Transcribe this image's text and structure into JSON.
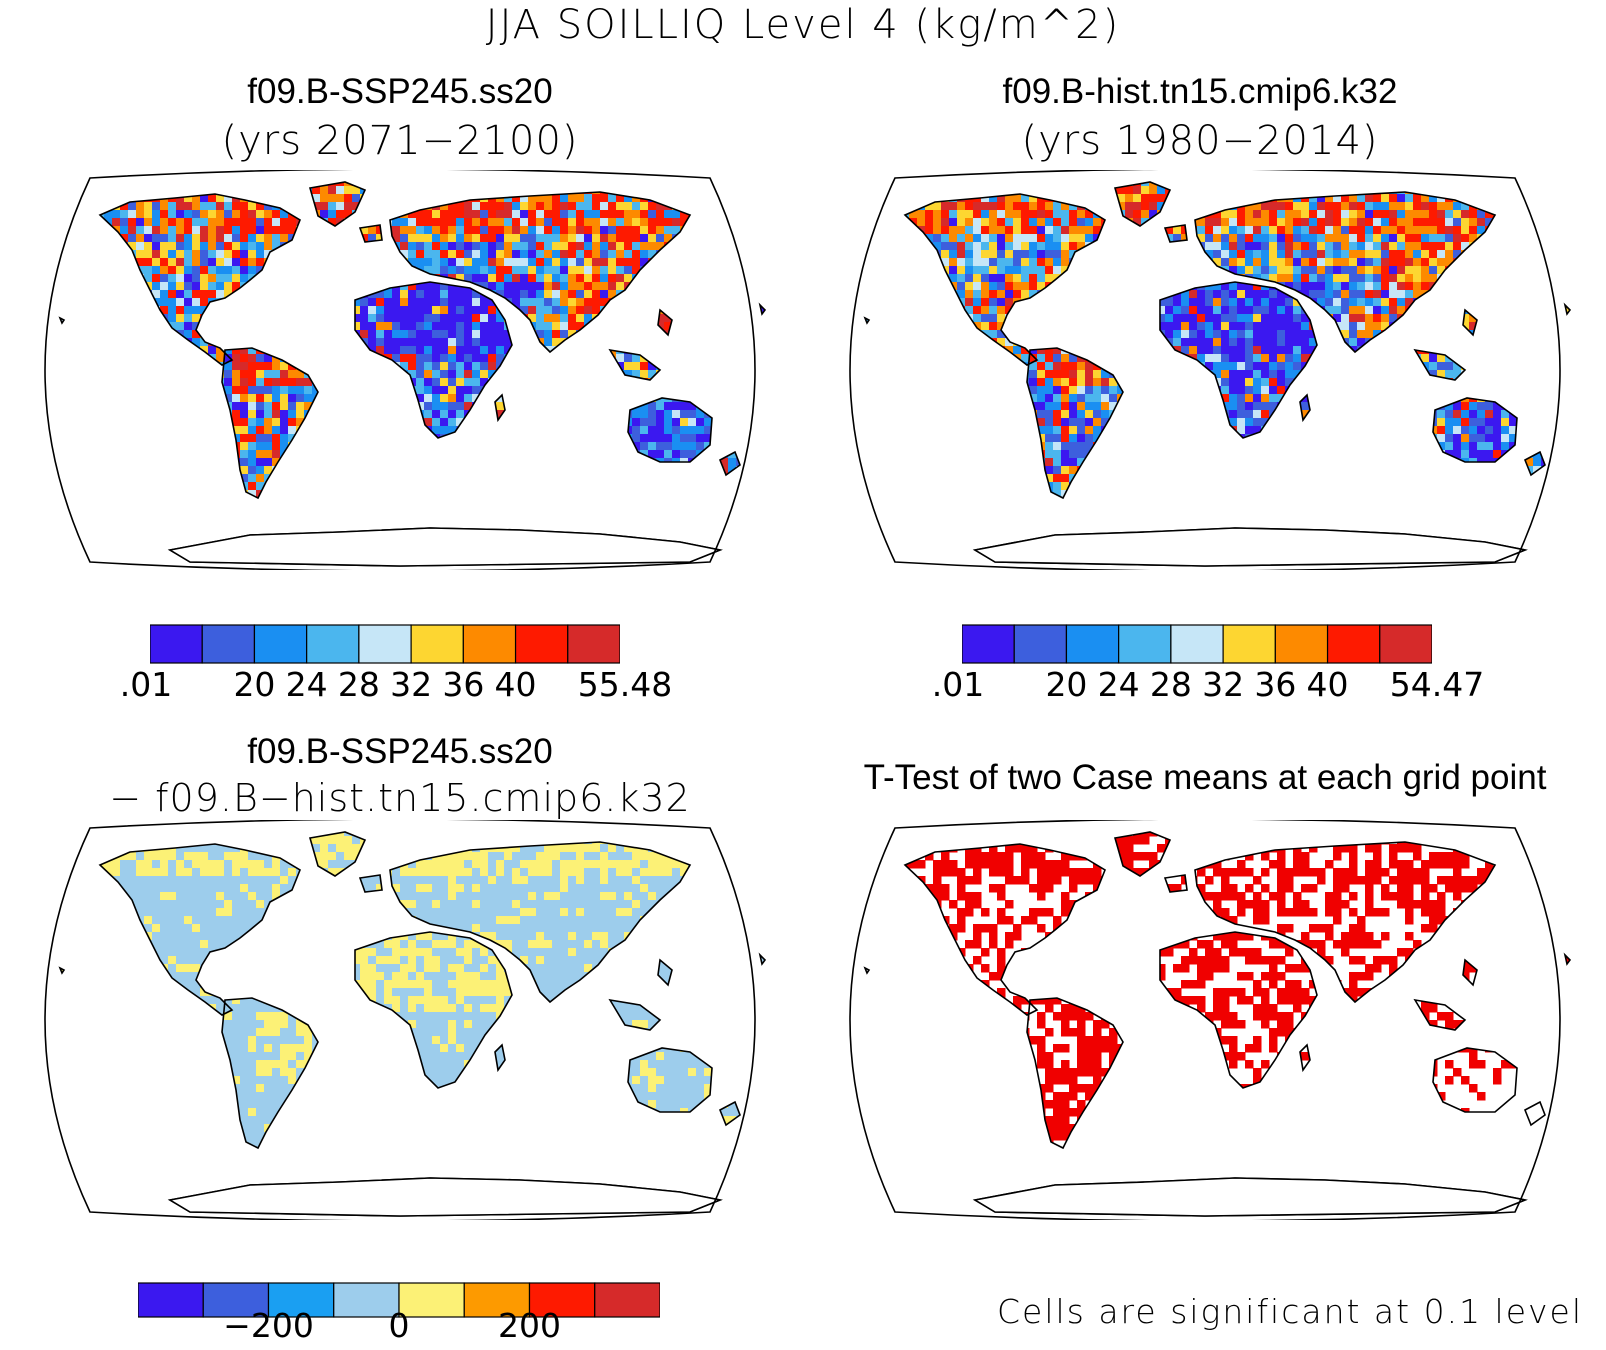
{
  "figure_title": "JJA SOILLIQ Level 4 (kg/m^2)",
  "panels": [
    {
      "title": "f09.B-SSP245.ss20",
      "subtitle": "(yrs 2071−2100)"
    },
    {
      "title": "f09.B-hist.tn15.cmip6.k32",
      "subtitle": "(yrs 1980−2014)"
    },
    {
      "title": "f09.B-SSP245.ss20",
      "subtitle": "− f09.B−hist.tn15.cmip6.k32"
    },
    {
      "title": "T-Test of two Case means at each grid point",
      "subtitle": ""
    }
  ],
  "significance_note": "Cells are significant at 0.1 level",
  "chart_data": [
    {
      "type": "heatmap",
      "panel": "f09.B-SSP245.ss20 (yrs 2071-2100)",
      "projection": "robinson",
      "colorbar": {
        "colors": [
          "#3b18f0",
          "#3d5fdd",
          "#1a8ff2",
          "#4bb6ee",
          "#c6e6f7",
          "#fdd631",
          "#fd8a00",
          "#fe1a00",
          "#d62a2a"
        ],
        "tick_labels": [
          ".01",
          "20",
          "24",
          "28",
          "32",
          "36",
          "40",
          "55.48"
        ]
      }
    },
    {
      "type": "heatmap",
      "panel": "f09.B-hist.tn15.cmip6.k32 (yrs 1980-2014)",
      "projection": "robinson",
      "colorbar": {
        "colors": [
          "#3b18f0",
          "#3d5fdd",
          "#1a8ff2",
          "#4bb6ee",
          "#c6e6f7",
          "#fdd631",
          "#fd8a00",
          "#fe1a00",
          "#d62a2a"
        ],
        "tick_labels": [
          ".01",
          "20",
          "24",
          "28",
          "32",
          "36",
          "40",
          "54.47"
        ]
      }
    },
    {
      "type": "heatmap",
      "panel": "difference",
      "projection": "robinson",
      "colorbar": {
        "colors": [
          "#3b18f0",
          "#3d5fdd",
          "#1a9ff2",
          "#9dcdec",
          "#fcf176",
          "#fd9a00",
          "#fe1a00",
          "#d62a2a"
        ],
        "tick_labels": [
          "−200",
          "0",
          "200"
        ]
      }
    },
    {
      "type": "heatmap",
      "panel": "t-test",
      "projection": "robinson",
      "significant_color": "#f00000"
    }
  ]
}
